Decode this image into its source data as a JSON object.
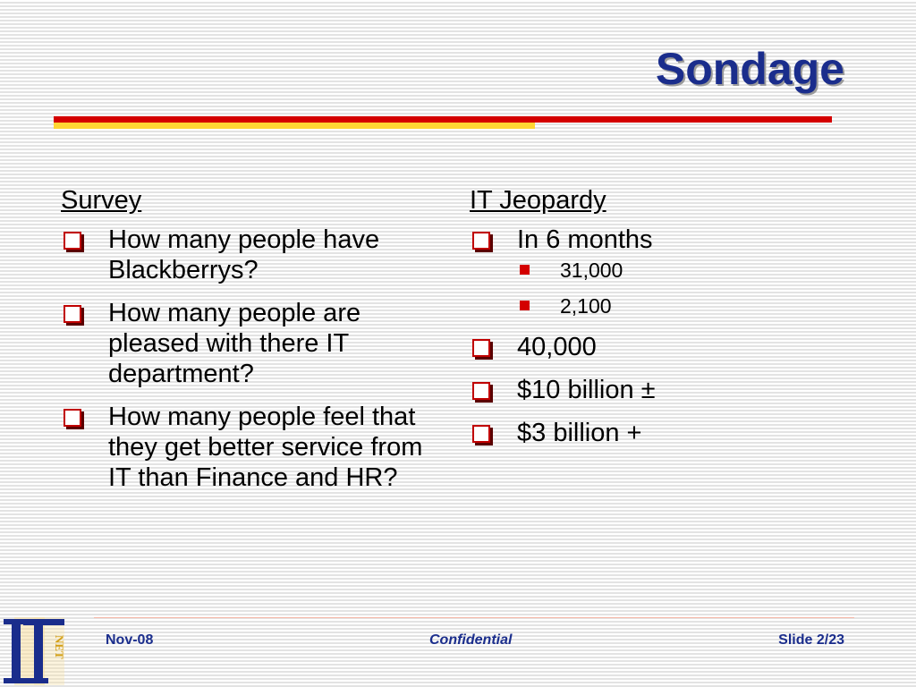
{
  "slide": {
    "title": "Sondage",
    "left_column": {
      "heading": "Survey",
      "bullets": [
        {
          "text": "How many people have Blackberrys?"
        },
        {
          "text": "How many people are pleased with there IT department?"
        },
        {
          "text": "How many people feel that they get better service from IT than Finance and HR?"
        }
      ]
    },
    "right_column": {
      "heading": "IT Jeopardy",
      "bullets": [
        {
          "text": "In 6 months",
          "sub": [
            "31,000",
            "2,100"
          ]
        },
        {
          "text": "40,000"
        },
        {
          "text": "$10 billion ±"
        },
        {
          "text": "$3 billion +"
        }
      ]
    }
  },
  "footer": {
    "date": "Nov-08",
    "center": "Confidential",
    "slide_number": "Slide 2/23"
  },
  "logo": {
    "letters": [
      "I",
      "T"
    ],
    "side_text": "NET"
  },
  "icons": {
    "level1_bullet": "checkbox-square-icon",
    "level2_bullet": "filled-square-icon"
  },
  "colors": {
    "title": "#1a2d8c",
    "accent_red": "#d40000",
    "accent_yellow": "#ffd633",
    "footer_text": "#1a2d8c",
    "logo_gold": "#d4a017"
  }
}
